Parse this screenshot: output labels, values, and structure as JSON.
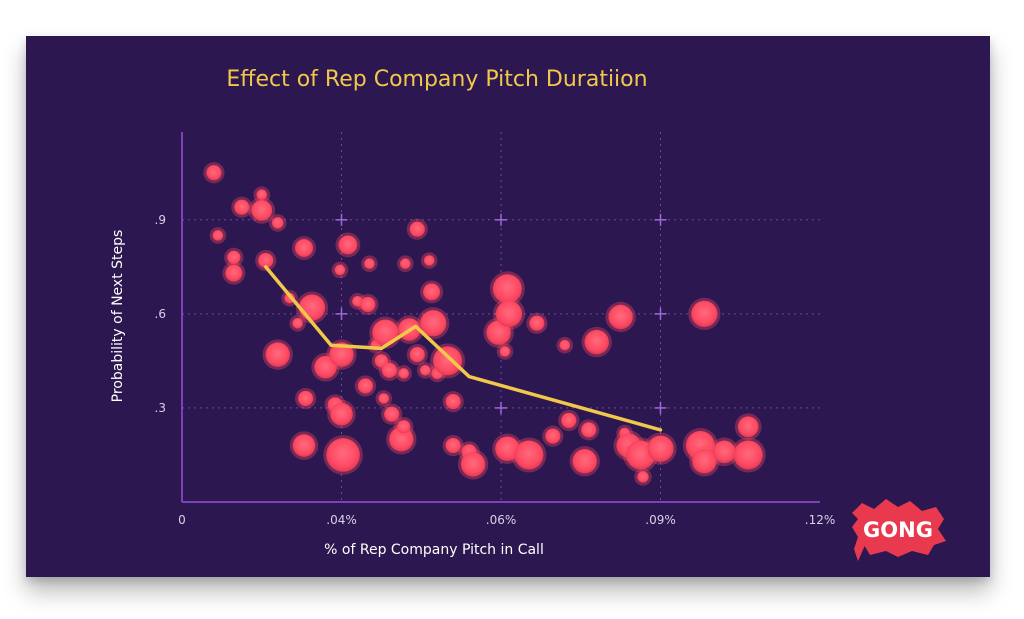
{
  "chart_data": {
    "type": "scatter",
    "title": "Effect of Rep Company Pitch Duratiion",
    "xlabel": "% of Rep Company Pitch in Call",
    "ylabel": "Probability of Next Steps",
    "x_ticks": [
      {
        "value": 0,
        "label": "0"
      },
      {
        "value": 0.02,
        "label": ".04%"
      },
      {
        "value": 0.04,
        "label": ".06%"
      },
      {
        "value": 0.06,
        "label": ".09%"
      },
      {
        "value": 0.08,
        "label": ".12%"
      }
    ],
    "y_ticks": [
      {
        "value": 0.3,
        "label": ".3"
      },
      {
        "value": 0.6,
        "label": ".6"
      },
      {
        "value": 0.9,
        "label": ".9"
      }
    ],
    "xlim": [
      0,
      0.08
    ],
    "ylim": [
      0,
      1.18
    ],
    "grid": true,
    "points": [
      {
        "x": 0.004,
        "y": 1.05,
        "size": 1
      },
      {
        "x": 0.0045,
        "y": 0.85,
        "size": 0.5
      },
      {
        "x": 0.0075,
        "y": 0.94,
        "size": 1
      },
      {
        "x": 0.0065,
        "y": 0.78,
        "size": 0.8
      },
      {
        "x": 0.0065,
        "y": 0.73,
        "size": 1.2
      },
      {
        "x": 0.01,
        "y": 0.98,
        "size": 0.5
      },
      {
        "x": 0.01,
        "y": 0.93,
        "size": 1.6
      },
      {
        "x": 0.0105,
        "y": 0.77,
        "size": 1
      },
      {
        "x": 0.012,
        "y": 0.89,
        "size": 0.6
      },
      {
        "x": 0.0135,
        "y": 0.65,
        "size": 0.5
      },
      {
        "x": 0.0145,
        "y": 0.57,
        "size": 0.5
      },
      {
        "x": 0.0153,
        "y": 0.81,
        "size": 1.3
      },
      {
        "x": 0.0163,
        "y": 0.62,
        "size": 2.2
      },
      {
        "x": 0.012,
        "y": 0.47,
        "size": 2
      },
      {
        "x": 0.0155,
        "y": 0.33,
        "size": 1
      },
      {
        "x": 0.0153,
        "y": 0.18,
        "size": 1.8
      },
      {
        "x": 0.018,
        "y": 0.43,
        "size": 1.8
      },
      {
        "x": 0.0192,
        "y": 0.31,
        "size": 1
      },
      {
        "x": 0.0198,
        "y": 0.74,
        "size": 0.5
      },
      {
        "x": 0.02,
        "y": 0.47,
        "size": 2
      },
      {
        "x": 0.02,
        "y": 0.28,
        "size": 1.8
      },
      {
        "x": 0.0202,
        "y": 0.15,
        "size": 3
      },
      {
        "x": 0.0208,
        "y": 0.82,
        "size": 1.4
      },
      {
        "x": 0.022,
        "y": 0.64,
        "size": 0.5
      },
      {
        "x": 0.023,
        "y": 0.37,
        "size": 1
      },
      {
        "x": 0.0233,
        "y": 0.63,
        "size": 1
      },
      {
        "x": 0.0235,
        "y": 0.76,
        "size": 0.5
      },
      {
        "x": 0.0243,
        "y": 0.5,
        "size": 0.5
      },
      {
        "x": 0.025,
        "y": 0.45,
        "size": 0.8
      },
      {
        "x": 0.0253,
        "y": 0.33,
        "size": 0.5
      },
      {
        "x": 0.0255,
        "y": 0.54,
        "size": 2.2
      },
      {
        "x": 0.026,
        "y": 0.42,
        "size": 1
      },
      {
        "x": 0.0263,
        "y": 0.28,
        "size": 1
      },
      {
        "x": 0.0275,
        "y": 0.2,
        "size": 2
      },
      {
        "x": 0.0278,
        "y": 0.24,
        "size": 0.8
      },
      {
        "x": 0.0278,
        "y": 0.41,
        "size": 0.5
      },
      {
        "x": 0.028,
        "y": 0.76,
        "size": 0.5
      },
      {
        "x": 0.0285,
        "y": 0.55,
        "size": 1.8
      },
      {
        "x": 0.0295,
        "y": 0.87,
        "size": 1
      },
      {
        "x": 0.0295,
        "y": 0.47,
        "size": 1
      },
      {
        "x": 0.0305,
        "y": 0.42,
        "size": 0.5
      },
      {
        "x": 0.031,
        "y": 0.77,
        "size": 0.5
      },
      {
        "x": 0.0313,
        "y": 0.67,
        "size": 1.2
      },
      {
        "x": 0.0315,
        "y": 0.57,
        "size": 2.2
      },
      {
        "x": 0.032,
        "y": 0.41,
        "size": 0.6
      },
      {
        "x": 0.0333,
        "y": 0.45,
        "size": 2.5
      },
      {
        "x": 0.034,
        "y": 0.32,
        "size": 1
      },
      {
        "x": 0.034,
        "y": 0.18,
        "size": 1
      },
      {
        "x": 0.036,
        "y": 0.16,
        "size": 1
      },
      {
        "x": 0.0365,
        "y": 0.12,
        "size": 2
      },
      {
        "x": 0.0397,
        "y": 0.54,
        "size": 2
      },
      {
        "x": 0.0405,
        "y": 0.48,
        "size": 0.5
      },
      {
        "x": 0.0408,
        "y": 0.68,
        "size": 2.5
      },
      {
        "x": 0.041,
        "y": 0.6,
        "size": 2.2
      },
      {
        "x": 0.0408,
        "y": 0.17,
        "size": 2
      },
      {
        "x": 0.0435,
        "y": 0.15,
        "size": 2.5
      },
      {
        "x": 0.0445,
        "y": 0.57,
        "size": 1
      },
      {
        "x": 0.0465,
        "y": 0.21,
        "size": 1
      },
      {
        "x": 0.048,
        "y": 0.5,
        "size": 0.5
      },
      {
        "x": 0.0485,
        "y": 0.26,
        "size": 1
      },
      {
        "x": 0.0505,
        "y": 0.13,
        "size": 2
      },
      {
        "x": 0.051,
        "y": 0.23,
        "size": 1
      },
      {
        "x": 0.052,
        "y": 0.51,
        "size": 2
      },
      {
        "x": 0.055,
        "y": 0.59,
        "size": 2
      },
      {
        "x": 0.0555,
        "y": 0.22,
        "size": 0.5
      },
      {
        "x": 0.056,
        "y": 0.18,
        "size": 2
      },
      {
        "x": 0.0575,
        "y": 0.15,
        "size": 2.5
      },
      {
        "x": 0.0578,
        "y": 0.08,
        "size": 0.6
      },
      {
        "x": 0.06,
        "y": 0.17,
        "size": 2.2
      },
      {
        "x": 0.065,
        "y": 0.18,
        "size": 2.5
      },
      {
        "x": 0.0655,
        "y": 0.13,
        "size": 2
      },
      {
        "x": 0.0655,
        "y": 0.6,
        "size": 2.2
      },
      {
        "x": 0.068,
        "y": 0.16,
        "size": 1.8
      },
      {
        "x": 0.071,
        "y": 0.24,
        "size": 1.6
      },
      {
        "x": 0.071,
        "y": 0.15,
        "size": 2.5
      }
    ],
    "trend_line": {
      "x": [
        0.0105,
        0.0187,
        0.025,
        0.0293,
        0.036,
        0.06
      ],
      "y": [
        0.75,
        0.5,
        0.49,
        0.56,
        0.4,
        0.23
      ]
    },
    "colors": {
      "background": "#2d1750",
      "point": "#ff4b64",
      "trend": "#f2c84b",
      "title": "#f2c84b",
      "grid": "#6a4aa6",
      "axis": "#9a4fd8"
    }
  },
  "logo": {
    "text": "GONG",
    "color": "#e8394f"
  }
}
